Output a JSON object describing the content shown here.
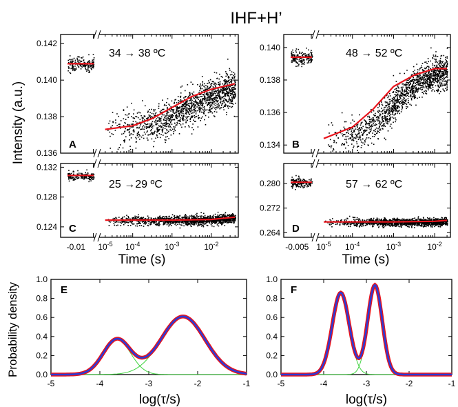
{
  "figure_title": "IHF+H’",
  "shared_labels": {
    "intensity_ylabel": "Intensity (a.u.)",
    "time_xlabel": "Time (s)",
    "pdf_ylabel": "Probability density",
    "logtau_xlabel": "log(τ/s)"
  },
  "colors": {
    "fit": "#e8141c",
    "data": "#000000",
    "pdf_measured": "#e8141c",
    "pdf_total": "#2b3bd6",
    "pdf_components": "#3fd33f"
  },
  "chart_data": [
    {
      "panel": "A",
      "type": "scatter",
      "annotation": "34 → 38 ºC",
      "ylim": [
        0.136,
        0.1425
      ],
      "yticks": [
        "0.136",
        "0.138",
        "0.140",
        "0.142"
      ],
      "pre_segment": {
        "mean": 0.1409,
        "noise": 0.0002,
        "x_label": ""
      },
      "kinetic": {
        "t_start": 2e-05,
        "t_end": 0.04,
        "base": 0.1372,
        "amplitude": 0.0028,
        "log10_tau": -2.5,
        "width": 1.4,
        "noise": 0.0005
      },
      "fit_curve": {
        "x_log10": [
          -4.7,
          -4,
          -3.5,
          -3,
          -2.5,
          -2,
          -1.4
        ],
        "y": [
          0.1373,
          0.1375,
          0.1379,
          0.1385,
          0.1391,
          0.1395,
          0.1398
        ]
      }
    },
    {
      "panel": "B",
      "type": "scatter",
      "annotation": "48 → 52 ºC",
      "ylim": [
        0.1335,
        0.1408
      ],
      "yticks": [
        "0.134",
        "0.136",
        "0.138",
        "0.140"
      ],
      "pre_segment": {
        "mean": 0.1394,
        "noise": 0.0002,
        "x_label": ""
      },
      "kinetic": {
        "t_start": 2e-05,
        "t_end": 0.02,
        "base": 0.1343,
        "amplitude": 0.0044,
        "log10_tau": -3.0,
        "width": 0.9,
        "noise": 0.0005
      },
      "fit_curve": {
        "x_log10": [
          -4.7,
          -4,
          -3.5,
          -3,
          -2.5,
          -2,
          -1.7
        ],
        "y": [
          0.1344,
          0.1351,
          0.1362,
          0.1376,
          0.1383,
          0.1387,
          0.1387
        ]
      }
    },
    {
      "panel": "C",
      "type": "scatter",
      "annotation": "25 →29 ºC",
      "ylim": [
        0.1226,
        0.1325
      ],
      "yticks": [
        "0.124",
        "0.128",
        "0.132"
      ],
      "xticks": [
        "-0.01",
        "10-5",
        "10-4",
        "10-3",
        "10-2"
      ],
      "pre_segment": {
        "mean": 0.1309,
        "noise": 0.0003,
        "x_label": "-0.01"
      },
      "kinetic": {
        "t_start": 2e-05,
        "t_end": 0.04,
        "base": 0.1249,
        "amplitude": 0.0005,
        "log10_tau": -1.6,
        "width": 0.6,
        "noise": 0.0003
      },
      "fit_curve": {
        "x_log10": [
          -4.7,
          -3,
          -2,
          -1.4
        ],
        "y": [
          0.1249,
          0.1249,
          0.125,
          0.1253
        ]
      }
    },
    {
      "panel": "D",
      "type": "scatter",
      "annotation": "57 → 62 ºC",
      "ylim": [
        0.2625,
        0.2865
      ],
      "yticks": [
        "0.264",
        "0.272",
        "0.280"
      ],
      "xticks": [
        "-0.005",
        "10-5",
        "10-4",
        "10-3",
        "10-2"
      ],
      "pre_segment": {
        "mean": 0.2804,
        "noise": 0.0008,
        "x_label": "-0.005"
      },
      "kinetic": {
        "t_start": 2e-05,
        "t_end": 0.02,
        "base": 0.2675,
        "amplitude": 0.0005,
        "log10_tau": -1.7,
        "width": 0.6,
        "noise": 0.0006
      },
      "fit_curve": {
        "x_log10": [
          -4.7,
          -3,
          -2,
          -1.7
        ],
        "y": [
          0.2675,
          0.2675,
          0.2677,
          0.268
        ]
      }
    },
    {
      "panel": "E",
      "type": "line",
      "xlim": [
        -5,
        -1
      ],
      "ylim": [
        0,
        1.0
      ],
      "xticks": [
        "-5",
        "-4",
        "-3",
        "-2",
        "-1"
      ],
      "yticks": [
        "0.0",
        "0.2",
        "0.4",
        "0.6",
        "0.8",
        "1.0"
      ],
      "peaks": [
        {
          "center": -3.65,
          "height": 0.37,
          "sigma": 0.28
        },
        {
          "center": -2.3,
          "height": 0.61,
          "sigma": 0.45
        }
      ]
    },
    {
      "panel": "F",
      "type": "line",
      "xlim": [
        -5,
        -1
      ],
      "ylim": [
        0,
        1.0
      ],
      "xticks": [
        "-5",
        "-4",
        "-3",
        "-2",
        "-1"
      ],
      "yticks": [
        "0.0",
        "0.2",
        "0.4",
        "0.6",
        "0.8",
        "1.0"
      ],
      "peaks": [
        {
          "center": -3.6,
          "height": 0.86,
          "sigma": 0.2
        },
        {
          "center": -2.8,
          "height": 0.94,
          "sigma": 0.17
        }
      ]
    }
  ]
}
